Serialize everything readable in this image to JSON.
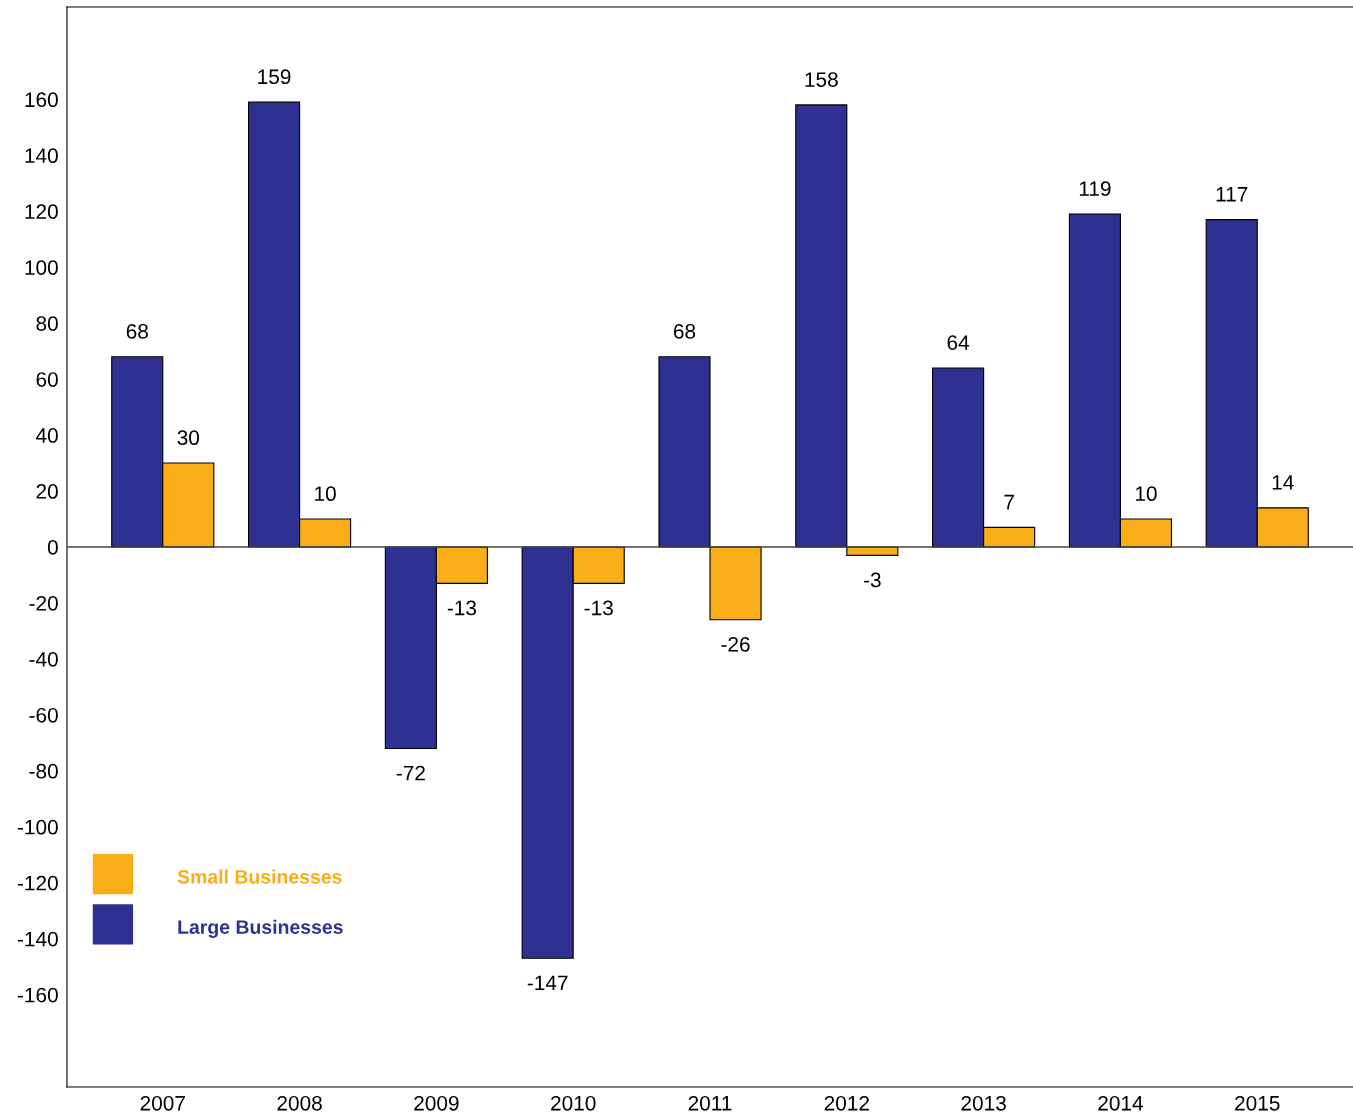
{
  "chart_data": {
    "type": "bar",
    "categories": [
      "2007",
      "2008",
      "2009",
      "2010",
      "2011",
      "2012",
      "2013",
      "2014",
      "2015"
    ],
    "series": [
      {
        "name": "Large Businesses",
        "color": "#2e3192",
        "values": [
          68,
          159,
          -72,
          -147,
          68,
          158,
          64,
          119,
          117
        ]
      },
      {
        "name": "Small Businesses",
        "color": "#f9ad19",
        "values": [
          30,
          10,
          -13,
          -13,
          -26,
          -3,
          7,
          10,
          14
        ]
      }
    ],
    "ylim": [
      -193,
      193
    ],
    "yticks": [
      -160,
      -140,
      -120,
      -100,
      -80,
      -60,
      -40,
      -20,
      0,
      20,
      40,
      60,
      80,
      100,
      120,
      140,
      160
    ],
    "ref_lines": [
      {
        "axis": "y",
        "value": 0,
        "color": "#444444"
      }
    ],
    "data_labels": true,
    "grid": false,
    "legend": "bottom left"
  }
}
